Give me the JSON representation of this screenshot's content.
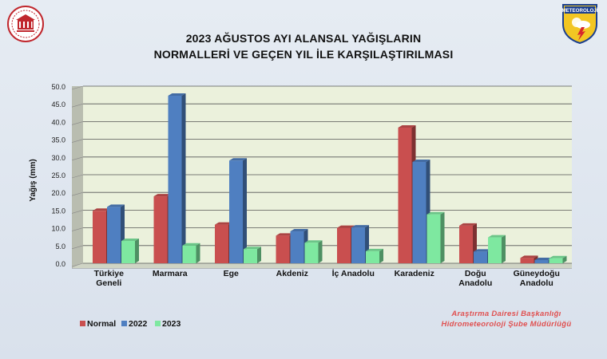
{
  "title_line1": "2023 AĞUSTOS AYI ALANSAL YAĞIŞLARIN",
  "title_line2": "NORMALLERİ VE GEÇEN YIL İLE KARŞILAŞTIRILMASI",
  "right_logo_text": "METEOROLOJİ",
  "credit_line1": "Araştırma Dairesi Başkanlığı",
  "credit_line2": "Hidrometeoroloji Şube Müdürlüğü",
  "colors": {
    "normal": "#c94f4f",
    "y2022": "#4f7fc1",
    "y2023": "#7ee8a0",
    "plot_bg": "#ebf1dc",
    "grid": "#555555"
  },
  "chart_data": {
    "type": "bar",
    "title": "2023 AĞUSTOS AYI ALANSAL YAĞIŞLARIN NORMALLERİ VE GEÇEN YIL İLE KARŞILAŞTIRILMASI",
    "ylabel": "Yağış (mm)",
    "xlabel": "",
    "ylim": [
      0,
      50
    ],
    "yticks": [
      "0.0",
      "5.0",
      "10.0",
      "15.0",
      "20.0",
      "25.0",
      "30.0",
      "35.0",
      "40.0",
      "45.0",
      "50.0"
    ],
    "grid": true,
    "legend_position": "bottom-left",
    "categories": [
      [
        "Türkiye",
        "Geneli"
      ],
      [
        "Marmara"
      ],
      [
        "Ege"
      ],
      [
        "Akdeniz"
      ],
      [
        "İç Anadolu"
      ],
      [
        "Karadeniz"
      ],
      [
        "Doğu",
        "Anadolu"
      ],
      [
        "Güneydoğu",
        "Anadolu"
      ]
    ],
    "series": [
      {
        "name": "Normal",
        "values": [
          14.8,
          18.9,
          10.9,
          7.8,
          10.0,
          38.3,
          10.6,
          1.5
        ]
      },
      {
        "name": "2022",
        "values": [
          15.9,
          47.3,
          29.0,
          9.0,
          10.1,
          28.6,
          3.3,
          0.9
        ]
      },
      {
        "name": "2023",
        "values": [
          6.3,
          5.0,
          4.0,
          5.8,
          3.4,
          13.8,
          7.3,
          1.4
        ]
      }
    ]
  }
}
